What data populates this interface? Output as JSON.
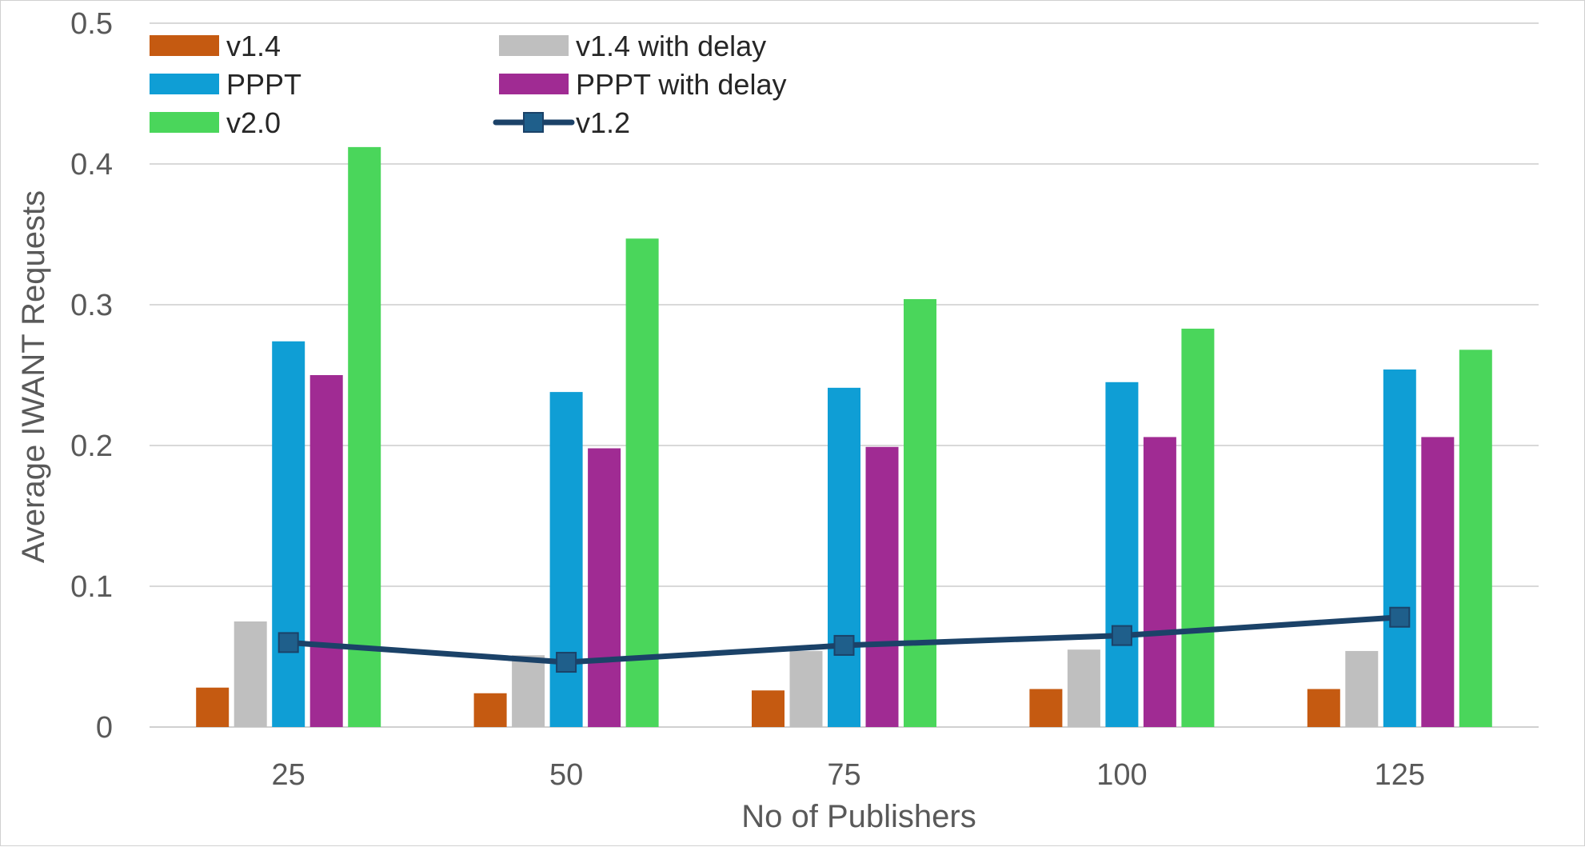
{
  "chart_data": {
    "type": "bar",
    "xlabel": "No of Publishers",
    "ylabel": "Average IWANT Requests",
    "categories": [
      "25",
      "50",
      "75",
      "100",
      "125"
    ],
    "ylim": [
      0,
      0.5
    ],
    "yticks": [
      "0",
      "0.1",
      "0.2",
      "0.3",
      "0.4",
      "0.5"
    ],
    "grid": true,
    "legend_position": "top-left",
    "series": [
      {
        "name": "v1.4",
        "kind": "bar",
        "color": "#c55a11",
        "values": [
          0.028,
          0.024,
          0.026,
          0.027,
          0.027
        ]
      },
      {
        "name": "v1.4 with delay",
        "kind": "bar",
        "color": "#bfbfbf",
        "values": [
          0.075,
          0.051,
          0.054,
          0.055,
          0.054
        ]
      },
      {
        "name": "PPPT",
        "kind": "bar",
        "color": "#0f9ed5",
        "values": [
          0.274,
          0.238,
          0.241,
          0.245,
          0.254
        ]
      },
      {
        "name": "PPPT with delay",
        "kind": "bar",
        "color": "#a02b93",
        "values": [
          0.25,
          0.198,
          0.199,
          0.206,
          0.206
        ]
      },
      {
        "name": "v2.0",
        "kind": "bar",
        "color": "#4ad65b",
        "values": [
          0.412,
          0.347,
          0.304,
          0.283,
          0.268
        ]
      },
      {
        "name": "v1.2",
        "kind": "line",
        "color": "#1b4268",
        "marker_color": "#1f5f8b",
        "values": [
          0.06,
          0.046,
          0.058,
          0.065,
          0.078
        ]
      }
    ]
  }
}
